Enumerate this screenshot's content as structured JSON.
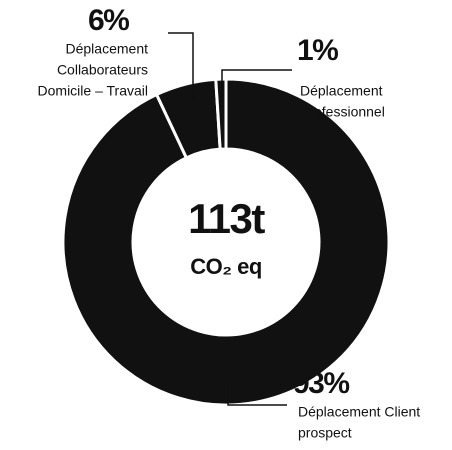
{
  "chart_data": {
    "type": "donut",
    "categories": [
      [
        "Déplacement Client",
        "prospect"
      ],
      [
        "Déplacement",
        "Collaborateurs",
        "Domicile – Travail"
      ],
      [
        "Déplacement",
        "Professionnel"
      ]
    ],
    "values": [
      93,
      6,
      1
    ],
    "value_labels": [
      "93%",
      "6%",
      "1%"
    ],
    "color": "#111111",
    "center_title": "113t",
    "center_subtitle": "CO₂ eq"
  }
}
